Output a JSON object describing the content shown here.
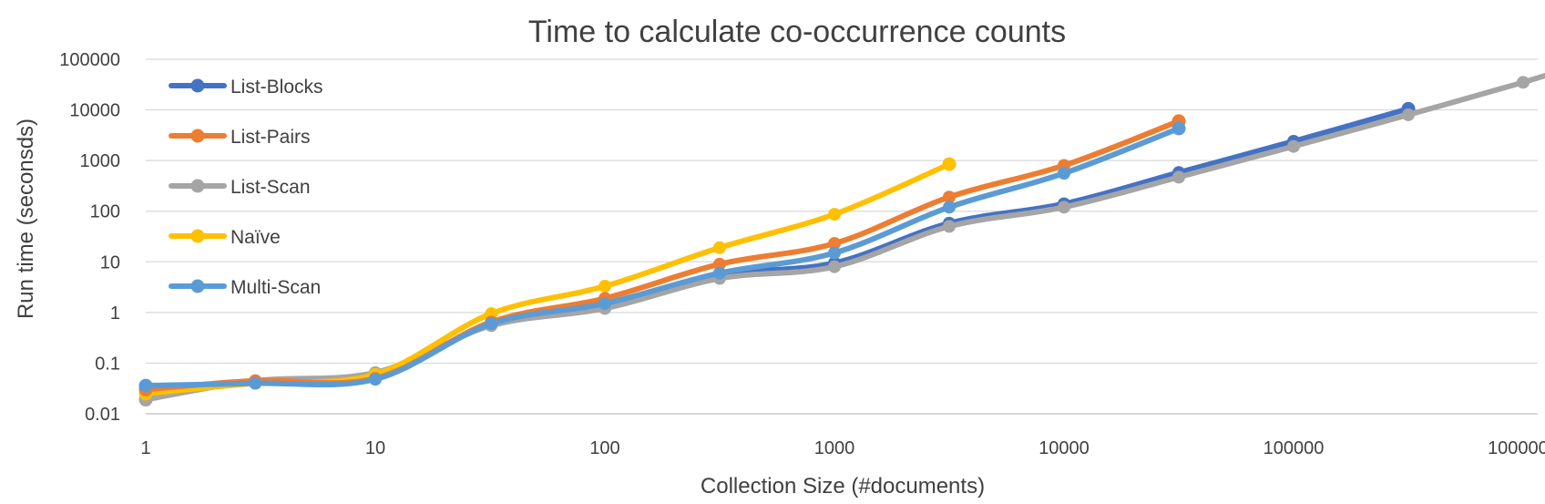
{
  "chart_data": {
    "type": "line",
    "title": "Time to calculate co-occurrence counts",
    "xlabel": "Collection Size (#documents)",
    "ylabel": "Run time (seconsds)",
    "x_scale": "log",
    "y_scale": "log",
    "xlim": [
      1,
      1000000
    ],
    "ylim": [
      0.01,
      100000
    ],
    "x_ticks": [
      "1",
      "10",
      "100",
      "1000",
      "10000",
      "100000",
      "1000000"
    ],
    "y_ticks": [
      "0.01",
      "0.1",
      "1",
      "10",
      "100",
      "1000",
      "10000",
      "100000"
    ],
    "grid": true,
    "legend_position": "top-left",
    "series": [
      {
        "name": "List-Blocks",
        "color": "#4472c4",
        "x": [
          1,
          3,
          10,
          32,
          100,
          316,
          1000,
          3162,
          10000,
          31623,
          100000,
          316228
        ],
        "y": [
          0.035,
          0.04,
          0.05,
          0.6,
          1.4,
          5.5,
          9.5,
          58,
          140,
          580,
          2400,
          10500
        ]
      },
      {
        "name": "List-Pairs",
        "color": "#ed7d31",
        "x": [
          1,
          3,
          10,
          32,
          100,
          316,
          1000,
          3162,
          10000,
          31623
        ],
        "y": [
          0.03,
          0.045,
          0.05,
          0.65,
          1.9,
          9,
          23,
          190,
          800,
          6000
        ]
      },
      {
        "name": "List-Scan",
        "color": "#a5a5a5",
        "x": [
          1,
          3,
          10,
          32,
          100,
          316,
          1000,
          3162,
          10000,
          31623,
          100000,
          316228,
          1000000,
          1778279
        ],
        "y": [
          0.019,
          0.045,
          0.065,
          0.55,
          1.2,
          4.7,
          8,
          50,
          120,
          470,
          1900,
          8000,
          35000,
          80000
        ]
      },
      {
        "name": "Naïve",
        "color": "#ffc000",
        "x": [
          1,
          3,
          10,
          32,
          100,
          316,
          1000,
          3162
        ],
        "y": [
          0.025,
          0.04,
          0.06,
          0.95,
          3.3,
          19,
          87,
          850
        ]
      },
      {
        "name": "Multi-Scan",
        "color": "#5b9bd5",
        "x": [
          1,
          3,
          10,
          32,
          100,
          316,
          1000,
          3162,
          10000,
          31623
        ],
        "y": [
          0.036,
          0.04,
          0.048,
          0.6,
          1.5,
          6,
          15,
          120,
          560,
          4300
        ]
      }
    ]
  }
}
